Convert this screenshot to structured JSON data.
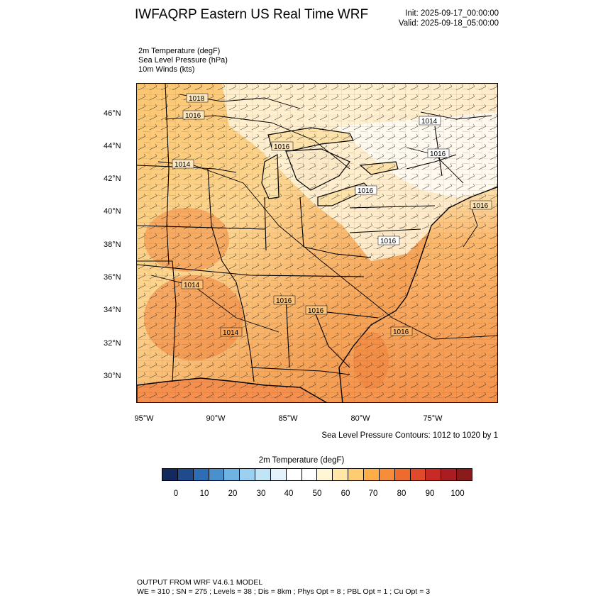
{
  "header": {
    "title": "IWFAQRP Eastern US Real Time WRF",
    "init": "Init: 2025-09-17_00:00:00",
    "valid": "Valid: 2025-09-18_05:00:00"
  },
  "fields": [
    "2m Temperature   (degF)",
    "Sea Level Pressure   (hPa)",
    "10m Winds   (kts)"
  ],
  "map": {
    "lat_ticks": [
      "46°N",
      "44°N",
      "42°N",
      "40°N",
      "38°N",
      "36°N",
      "34°N",
      "32°N",
      "30°N"
    ],
    "lon_ticks": [
      "95°W",
      "90°W",
      "85°W",
      "80°W",
      "75°W"
    ],
    "contour_labels": [
      "1018",
      "1016",
      "1014",
      "1016",
      "1014",
      "1016",
      "1016",
      "1016",
      "1014",
      "1016",
      "1016",
      "1016",
      "1014",
      "1016"
    ]
  },
  "contour_note": "Sea Level Pressure Contours: 1012 to 1020 by 1",
  "colorbar": {
    "title": "2m Temperature  (degF)",
    "labels": [
      "0",
      "10",
      "20",
      "30",
      "40",
      "50",
      "60",
      "70",
      "80",
      "90",
      "100"
    ],
    "colors": [
      "#132a5e",
      "#1f4a8c",
      "#2e6db5",
      "#4a90cc",
      "#6fb3e3",
      "#9bd0f0",
      "#c2e4f7",
      "#e3f2fb",
      "#ffffff",
      "#ffffff",
      "#fff6d6",
      "#ffe7a8",
      "#ffcd6f",
      "#fdae48",
      "#f78d38",
      "#ee6a2e",
      "#e04a2a",
      "#c82b26",
      "#a91d22",
      "#8b1a1a"
    ]
  },
  "footer": {
    "line1": "OUTPUT FROM WRF V4.6.1 MODEL",
    "line2": "WE = 310 ; SN = 275 ; Levels = 38 ; Dis = 8km ; Phys Opt = 8 ; PBL Opt = 1 ; Cu Opt = 3"
  }
}
